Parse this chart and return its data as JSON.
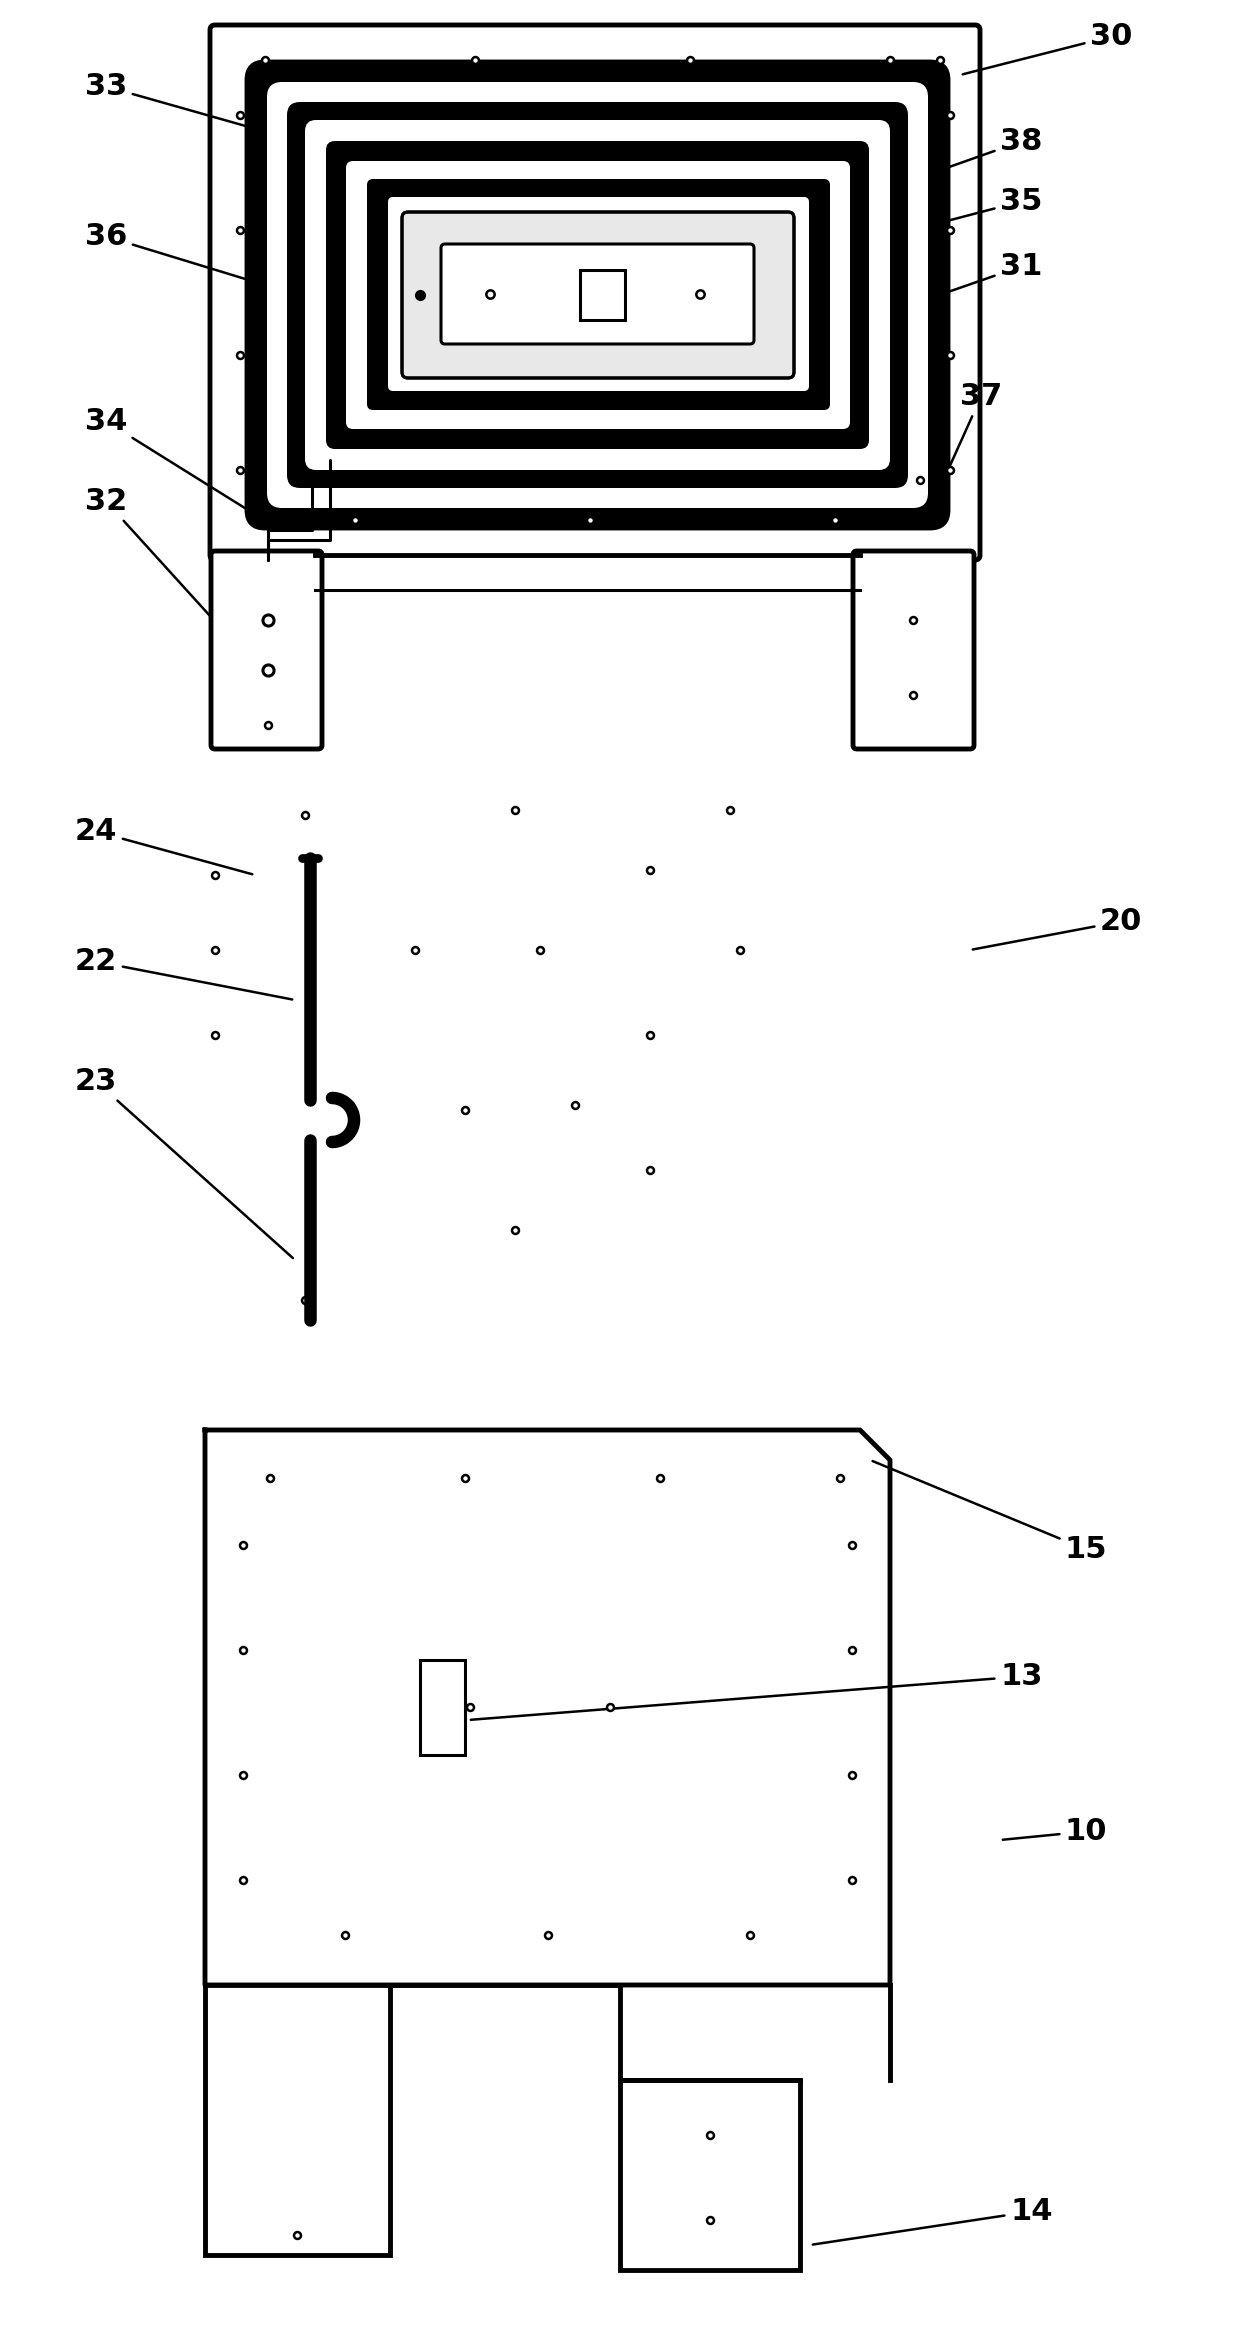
{
  "bg_color": "#ffffff",
  "line_color": "#000000",
  "lw_thick": 3.5,
  "lw_med": 2.2,
  "lw_thin": 1.5,
  "font_size": 22
}
